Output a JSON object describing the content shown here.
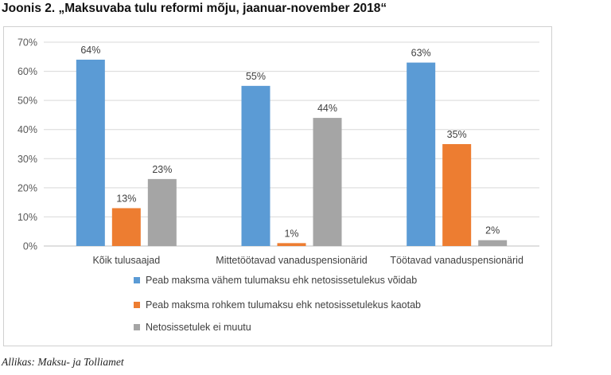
{
  "chart_data": {
    "type": "bar",
    "title": "Joonis 2. „Maksuvaba tulu reformi mõju, jaanuar-november 2018“",
    "categories": [
      "Kõik tulusaajad",
      "Mittetöötavad vanaduspensionärid",
      "Töötavad vanaduspensionärid"
    ],
    "series": [
      {
        "name": "Peab maksma vähem tulumaksu ehk netosissetulekus võidab",
        "color": "#5b9bd5",
        "values": [
          64,
          55,
          63
        ],
        "labels": [
          "64%",
          "55%",
          "63%"
        ]
      },
      {
        "name": "Peab maksma rohkem tulumaksu ehk netosissetulekus kaotab",
        "color": "#ed7d31",
        "values": [
          13,
          1,
          35
        ],
        "labels": [
          "13%",
          "1%",
          "35%"
        ]
      },
      {
        "name": "Netosissetulek ei muutu",
        "color": "#a5a5a5",
        "values": [
          23,
          44,
          2
        ],
        "labels": [
          "23%",
          "44%",
          "2%"
        ]
      }
    ],
    "yticks": [
      "0%",
      "10%",
      "20%",
      "30%",
      "40%",
      "50%",
      "60%",
      "70%"
    ],
    "ylim": [
      0,
      70
    ],
    "grid": true,
    "legend_position": "bottom",
    "xlabel": "",
    "ylabel": ""
  },
  "source": "Allikas: Maksu- ja Tolliamet"
}
